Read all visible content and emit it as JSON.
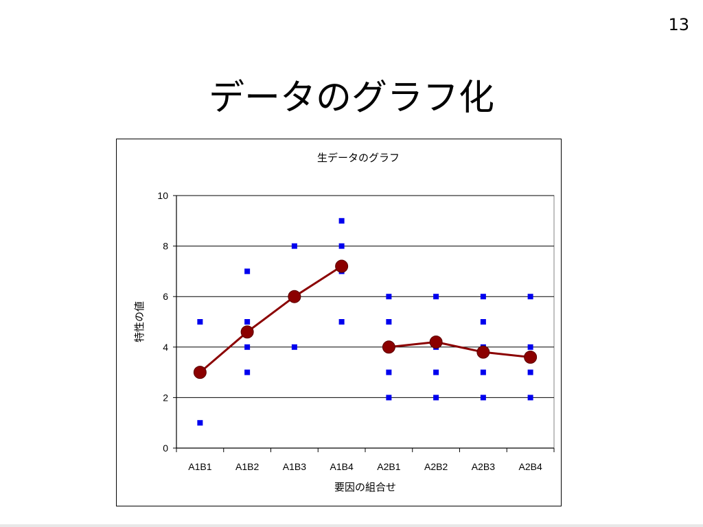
{
  "slide": {
    "page_number": "13",
    "title": "データのグラフ化"
  },
  "chart_data": {
    "type": "scatter",
    "title": "生データのグラフ",
    "xlabel": "要因の組合せ",
    "ylabel": "特性の値",
    "categories": [
      "A1B1",
      "A1B2",
      "A1B3",
      "A1B4",
      "A2B1",
      "A2B2",
      "A2B3",
      "A2B4"
    ],
    "ylim": [
      0,
      10
    ],
    "yticks": [
      0,
      2,
      4,
      6,
      8,
      10
    ],
    "grid": true,
    "raw_points": [
      {
        "category": "A1B1",
        "values": [
          5,
          1
        ]
      },
      {
        "category": "A1B2",
        "values": [
          7,
          5,
          4,
          3
        ]
      },
      {
        "category": "A1B3",
        "values": [
          8,
          6,
          4
        ]
      },
      {
        "category": "A1B4",
        "values": [
          9,
          8,
          7,
          5
        ]
      },
      {
        "category": "A2B1",
        "values": [
          6,
          5,
          4,
          3,
          2
        ]
      },
      {
        "category": "A2B2",
        "values": [
          6,
          4,
          3,
          2
        ]
      },
      {
        "category": "A2B3",
        "values": [
          6,
          5,
          4,
          3,
          2
        ]
      },
      {
        "category": "A2B4",
        "values": [
          6,
          4,
          3,
          2
        ]
      }
    ],
    "mean_lines": [
      {
        "categories": [
          "A1B1",
          "A1B2",
          "A1B3",
          "A1B4"
        ],
        "values": [
          3.0,
          4.6,
          6.0,
          7.2
        ]
      },
      {
        "categories": [
          "A2B1",
          "A2B2",
          "A2B3",
          "A2B4"
        ],
        "values": [
          4.0,
          4.2,
          3.8,
          3.6
        ]
      }
    ],
    "colors": {
      "points": "#0000ee",
      "mean_line": "#8b0000",
      "mean_marker": "#8b0000",
      "grid": "#000000",
      "plot_border": "#808080"
    }
  }
}
